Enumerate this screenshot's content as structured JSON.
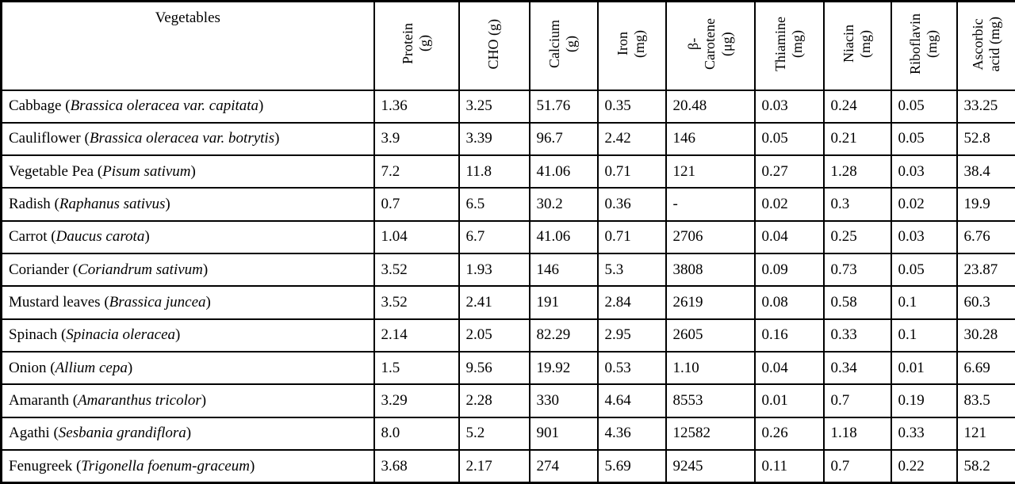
{
  "table": {
    "corner_header": "Vegetables",
    "columns": [
      {
        "label": "Protein\n(g)"
      },
      {
        "label": "CHO (g)"
      },
      {
        "label": "Calcium\n(g)"
      },
      {
        "label": "Iron\n(mg)"
      },
      {
        "label": "β-\nCarotene\n(μg)"
      },
      {
        "label": "Thiamine\n(mg)"
      },
      {
        "label": "Niacin\n(mg)"
      },
      {
        "label": "Riboflavin\n(mg)"
      },
      {
        "label": "Ascorbic\nacid (mg)"
      }
    ],
    "rows": [
      {
        "name": "Cabbage",
        "scientific_name": "Brassica oleracea var. capitata",
        "values": [
          "1.36",
          "3.25",
          "51.76",
          "0.35",
          "20.48",
          "0.03",
          "0.24",
          "0.05",
          "33.25"
        ]
      },
      {
        "name": "Cauliflower",
        "scientific_name": "Brassica oleracea var. botrytis",
        "values": [
          "3.9",
          "3.39",
          "96.7",
          "2.42",
          "146",
          "0.05",
          "0.21",
          "0.05",
          "52.8"
        ]
      },
      {
        "name": "Vegetable Pea",
        "scientific_name": "Pisum sativum",
        "values": [
          "7.2",
          "11.8",
          "41.06",
          "0.71",
          "121",
          "0.27",
          "1.28",
          "0.03",
          "38.4"
        ]
      },
      {
        "name": "Radish",
        "scientific_name": "Raphanus sativus",
        "values": [
          "0.7",
          "6.5",
          "30.2",
          "0.36",
          "-",
          "0.02",
          "0.3",
          "0.02",
          "19.9"
        ]
      },
      {
        "name": "Carrot",
        "scientific_name": "Daucus carota",
        "values": [
          "1.04",
          "6.7",
          "41.06",
          "0.71",
          "2706",
          "0.04",
          "0.25",
          "0.03",
          "6.76"
        ]
      },
      {
        "name": "Coriander",
        "scientific_name": "Coriandrum sativum",
        "values": [
          "3.52",
          "1.93",
          "146",
          "5.3",
          "3808",
          "0.09",
          "0.73",
          "0.05",
          "23.87"
        ]
      },
      {
        "name": "Mustard leaves",
        "scientific_name": "Brassica juncea",
        "values": [
          "3.52",
          "2.41",
          "191",
          "2.84",
          "2619",
          "0.08",
          "0.58",
          "0.1",
          "60.3"
        ]
      },
      {
        "name": "Spinach",
        "scientific_name": "Spinacia oleracea",
        "values": [
          "2.14",
          "2.05",
          "82.29",
          "2.95",
          "2605",
          "0.16",
          "0.33",
          "0.1",
          "30.28"
        ]
      },
      {
        "name": "Onion",
        "scientific_name": "Allium cepa",
        "values": [
          "1.5",
          "9.56",
          "19.92",
          "0.53",
          "1.10",
          "0.04",
          "0.34",
          "0.01",
          "6.69"
        ]
      },
      {
        "name": "Amaranth",
        "scientific_name": "Amaranthus tricolor",
        "values": [
          "3.29",
          "2.28",
          "330",
          "4.64",
          "8553",
          "0.01",
          "0.7",
          "0.19",
          "83.5"
        ]
      },
      {
        "name": "Agathi",
        "scientific_name": "Sesbania grandiflora",
        "values": [
          "8.0",
          "5.2",
          "901",
          "4.36",
          "12582",
          "0.26",
          "1.18",
          "0.33",
          "121"
        ]
      },
      {
        "name": "Fenugreek",
        "scientific_name": "Trigonella foenum-graceum",
        "values": [
          "3.68",
          "2.17",
          "274",
          "5.69",
          "9245",
          "0.11",
          "0.7",
          "0.22",
          "58.2"
        ]
      }
    ]
  },
  "colors": {
    "border": "#000000",
    "text": "#000000",
    "background": "#ffffff"
  }
}
